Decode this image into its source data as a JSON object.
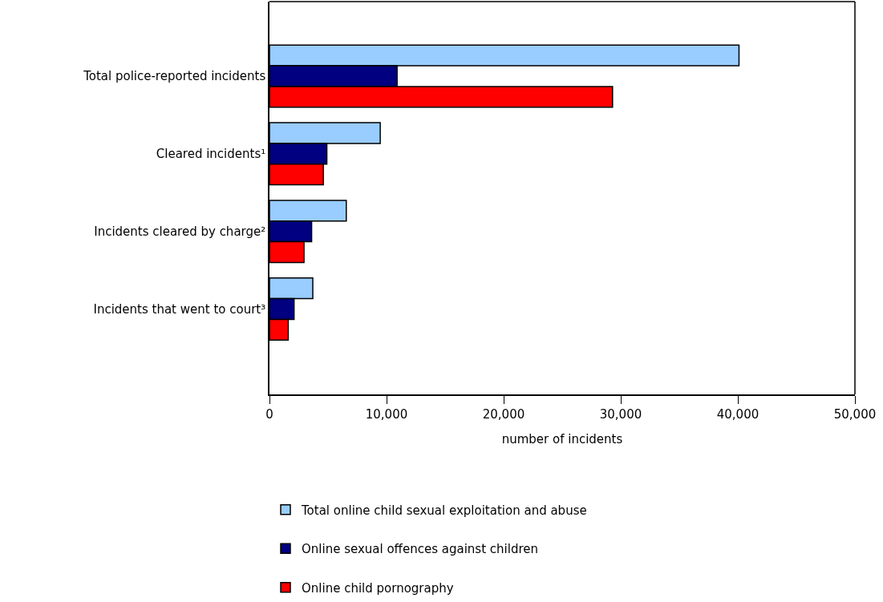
{
  "chart_data": {
    "type": "bar",
    "orientation": "horizontal",
    "categories": [
      "Total police-reported incidents",
      "Cleared incidents¹",
      "Incidents cleared by charge²",
      "Incidents that went to court³"
    ],
    "series": [
      {
        "name": "Total online child sexual exploitation and abuse",
        "color": "#99ccff",
        "values": [
          40100,
          9460,
          6560,
          3700
        ]
      },
      {
        "name": "Online sexual offences against children",
        "color": "#000080",
        "values": [
          10900,
          4900,
          3600,
          2100
        ]
      },
      {
        "name": "Online child pornography",
        "color": "#ff0000",
        "values": [
          29300,
          4600,
          2950,
          1600
        ]
      }
    ],
    "xlabel": "number of incidents",
    "xlim": [
      0,
      50000
    ],
    "xticks": [
      {
        "value": 0,
        "label": "0"
      },
      {
        "value": 10000,
        "label": "10,000"
      },
      {
        "value": 20000,
        "label": "20,000"
      },
      {
        "value": 30000,
        "label": "30,000"
      },
      {
        "value": 40000,
        "label": "40,000"
      },
      {
        "value": 50000,
        "label": "50,000"
      }
    ],
    "legend": "bottom"
  }
}
